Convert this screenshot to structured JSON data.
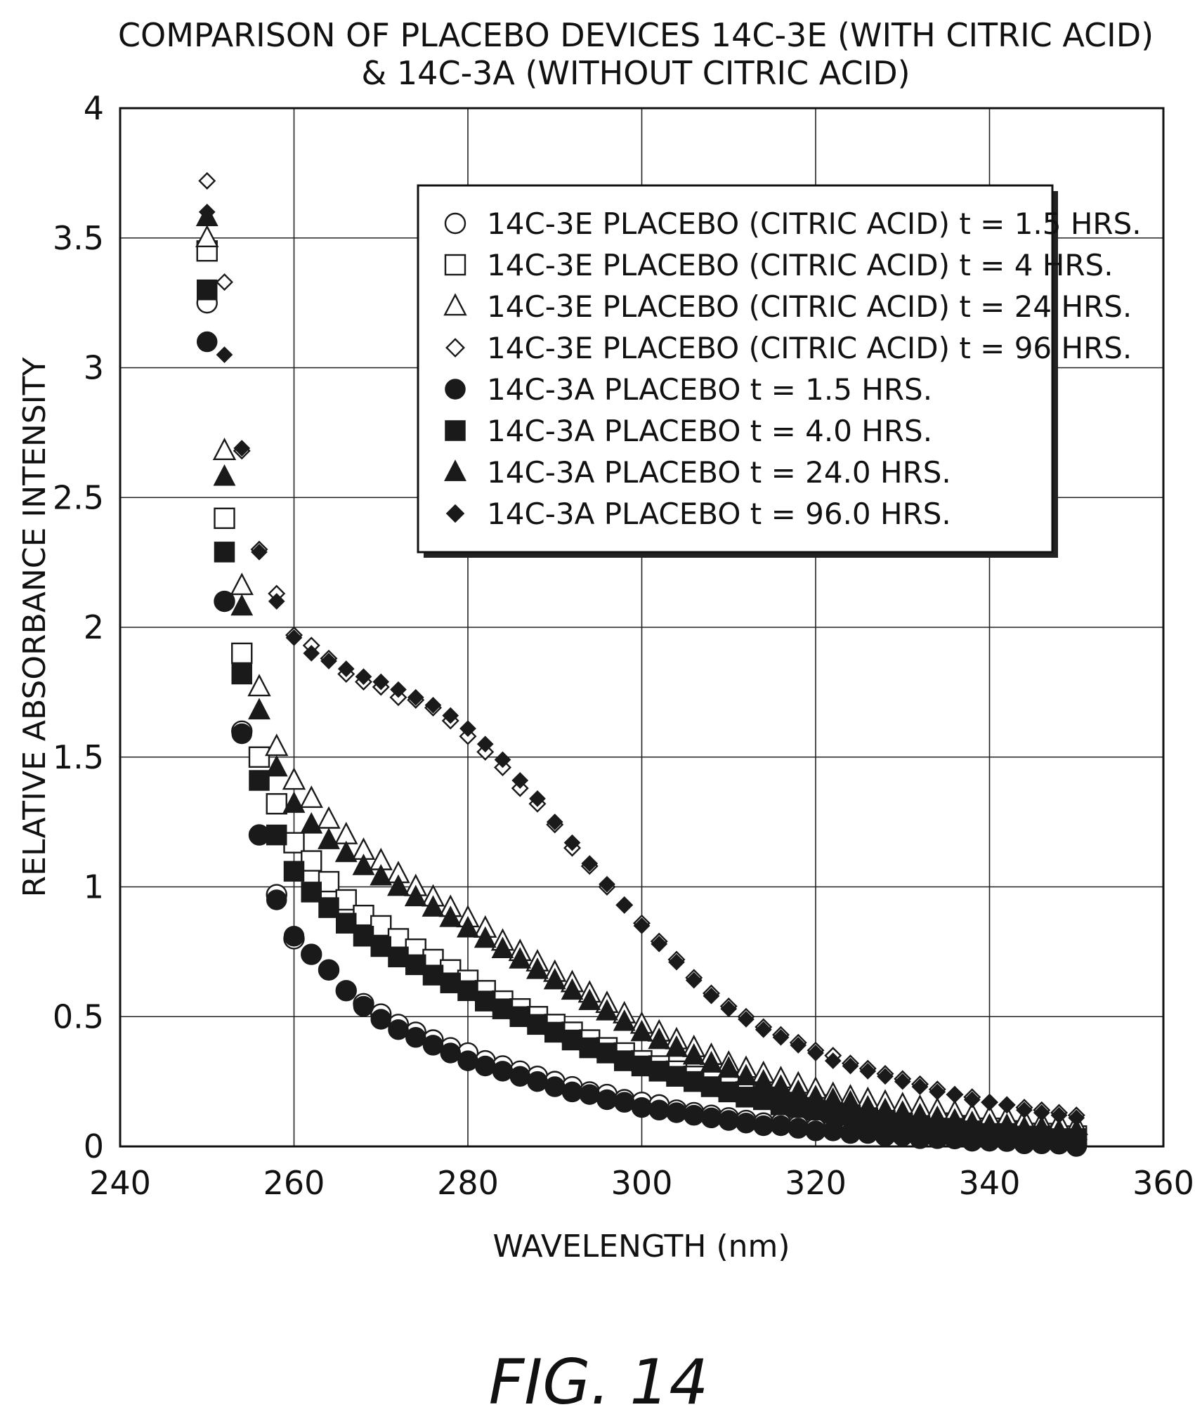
{
  "chart_data": {
    "type": "scatter",
    "title_lines": [
      "COMPARISON OF PLACEBO DEVICES 14C-3E (WITH CITRIC ACID)",
      "& 14C-3A (WITHOUT CITRIC ACID)"
    ],
    "xlabel": "WAVELENGTH (nm)",
    "ylabel": "RELATIVE ABSORBANCE INTENSITY",
    "xlim": [
      240,
      360
    ],
    "ylim": [
      0,
      4
    ],
    "x_ticks": [
      "240",
      "260",
      "280",
      "300",
      "320",
      "340",
      "360"
    ],
    "y_ticks": [
      "0",
      "0.5",
      "1",
      "1.5",
      "2",
      "2.5",
      "3",
      "3.5",
      "4"
    ],
    "grid": true,
    "legend_position": "top-right",
    "x": [
      250,
      252,
      254,
      256,
      258,
      260,
      262,
      264,
      266,
      268,
      270,
      272,
      274,
      276,
      278,
      280,
      282,
      284,
      286,
      288,
      290,
      292,
      294,
      296,
      298,
      300,
      302,
      304,
      306,
      308,
      310,
      312,
      314,
      316,
      318,
      320,
      322,
      324,
      326,
      328,
      330,
      332,
      334,
      336,
      338,
      340,
      342,
      344,
      346,
      348,
      350
    ],
    "series": [
      {
        "name": "14C-3E PLACEBO (CITRIC ACID) t = 1.5 HRS.",
        "marker": "circle-open",
        "values": [
          3.25,
          2.1,
          1.6,
          1.2,
          0.97,
          0.8,
          0.74,
          0.68,
          0.6,
          0.55,
          0.51,
          0.47,
          0.44,
          0.41,
          0.38,
          0.36,
          0.33,
          0.31,
          0.29,
          0.27,
          0.25,
          0.23,
          0.21,
          0.2,
          0.18,
          0.17,
          0.16,
          0.14,
          0.13,
          0.12,
          0.11,
          0.1,
          0.09,
          0.09,
          0.08,
          0.07,
          0.07,
          0.06,
          0.06,
          0.05,
          0.05,
          0.04,
          0.04,
          0.03,
          0.03,
          0.03,
          0.02,
          0.02,
          0.02,
          0.01,
          0.01
        ]
      },
      {
        "name": "14C-3E PLACEBO (CITRIC ACID) t = 4 HRS.",
        "marker": "square-open",
        "values": [
          3.45,
          2.42,
          1.9,
          1.5,
          1.32,
          1.17,
          1.1,
          1.02,
          0.95,
          0.89,
          0.85,
          0.8,
          0.76,
          0.72,
          0.68,
          0.64,
          0.6,
          0.56,
          0.53,
          0.5,
          0.47,
          0.44,
          0.41,
          0.38,
          0.36,
          0.33,
          0.31,
          0.29,
          0.27,
          0.25,
          0.23,
          0.21,
          0.2,
          0.18,
          0.17,
          0.16,
          0.14,
          0.13,
          0.12,
          0.11,
          0.1,
          0.09,
          0.09,
          0.08,
          0.07,
          0.07,
          0.06,
          0.05,
          0.05,
          0.04,
          0.04
        ]
      },
      {
        "name": "14C-3E PLACEBO (CITRIC ACID) t = 24 HRS.",
        "marker": "triangle-open",
        "values": [
          3.5,
          2.68,
          2.16,
          1.77,
          1.54,
          1.41,
          1.34,
          1.26,
          1.2,
          1.14,
          1.1,
          1.05,
          1.0,
          0.96,
          0.92,
          0.88,
          0.84,
          0.79,
          0.75,
          0.71,
          0.67,
          0.63,
          0.59,
          0.55,
          0.51,
          0.47,
          0.44,
          0.41,
          0.38,
          0.35,
          0.32,
          0.3,
          0.28,
          0.26,
          0.24,
          0.22,
          0.2,
          0.19,
          0.18,
          0.17,
          0.16,
          0.15,
          0.14,
          0.13,
          0.12,
          0.11,
          0.11,
          0.1,
          0.09,
          0.09,
          0.08
        ]
      },
      {
        "name": "14C-3E PLACEBO (CITRIC ACID) t = 96 HRS.",
        "marker": "diamond-open",
        "values": [
          3.72,
          3.33,
          2.68,
          2.3,
          2.13,
          1.97,
          1.93,
          1.88,
          1.82,
          1.79,
          1.77,
          1.73,
          1.72,
          1.69,
          1.64,
          1.58,
          1.52,
          1.46,
          1.38,
          1.32,
          1.24,
          1.15,
          1.08,
          1.0,
          0.93,
          0.86,
          0.79,
          0.72,
          0.65,
          0.59,
          0.54,
          0.5,
          0.46,
          0.43,
          0.4,
          0.37,
          0.35,
          0.32,
          0.3,
          0.28,
          0.26,
          0.24,
          0.22,
          0.2,
          0.19,
          0.17,
          0.16,
          0.15,
          0.14,
          0.13,
          0.12
        ]
      },
      {
        "name": "14C-3A PLACEBO t = 1.5 HRS.",
        "marker": "circle-filled",
        "values": [
          3.1,
          2.1,
          1.59,
          1.2,
          0.95,
          0.81,
          0.74,
          0.68,
          0.6,
          0.54,
          0.49,
          0.45,
          0.42,
          0.39,
          0.36,
          0.33,
          0.31,
          0.29,
          0.27,
          0.25,
          0.23,
          0.21,
          0.2,
          0.18,
          0.17,
          0.15,
          0.14,
          0.13,
          0.12,
          0.11,
          0.1,
          0.09,
          0.08,
          0.08,
          0.07,
          0.06,
          0.06,
          0.05,
          0.05,
          0.04,
          0.04,
          0.03,
          0.03,
          0.03,
          0.02,
          0.02,
          0.02,
          0.01,
          0.01,
          0.01,
          0.0
        ]
      },
      {
        "name": "14C-3A PLACEBO t = 4.0 HRS.",
        "marker": "square-filled",
        "values": [
          3.3,
          2.29,
          1.82,
          1.41,
          1.2,
          1.06,
          0.98,
          0.92,
          0.86,
          0.81,
          0.77,
          0.73,
          0.7,
          0.66,
          0.63,
          0.6,
          0.56,
          0.53,
          0.5,
          0.47,
          0.44,
          0.41,
          0.38,
          0.36,
          0.33,
          0.31,
          0.29,
          0.27,
          0.25,
          0.23,
          0.21,
          0.19,
          0.18,
          0.16,
          0.15,
          0.14,
          0.13,
          0.12,
          0.11,
          0.1,
          0.09,
          0.08,
          0.07,
          0.07,
          0.06,
          0.05,
          0.05,
          0.04,
          0.04,
          0.03,
          0.03
        ]
      },
      {
        "name": "14C-3A PLACEBO t = 24.0 HRS.",
        "marker": "triangle-filled",
        "values": [
          3.58,
          2.58,
          2.08,
          1.68,
          1.46,
          1.32,
          1.24,
          1.18,
          1.13,
          1.08,
          1.04,
          1.0,
          0.96,
          0.92,
          0.88,
          0.84,
          0.8,
          0.76,
          0.72,
          0.68,
          0.64,
          0.6,
          0.56,
          0.52,
          0.48,
          0.44,
          0.41,
          0.38,
          0.35,
          0.32,
          0.3,
          0.27,
          0.25,
          0.23,
          0.21,
          0.19,
          0.18,
          0.17,
          0.15,
          0.14,
          0.13,
          0.12,
          0.11,
          0.1,
          0.09,
          0.08,
          0.08,
          0.07,
          0.07,
          0.06,
          0.06
        ]
      },
      {
        "name": "14C-3A PLACEBO t = 96.0 HRS.",
        "marker": "diamond-filled",
        "values": [
          3.6,
          3.05,
          2.69,
          2.29,
          2.1,
          1.96,
          1.9,
          1.87,
          1.84,
          1.81,
          1.79,
          1.76,
          1.73,
          1.7,
          1.66,
          1.61,
          1.55,
          1.49,
          1.41,
          1.34,
          1.25,
          1.17,
          1.09,
          1.01,
          0.93,
          0.85,
          0.78,
          0.71,
          0.64,
          0.58,
          0.53,
          0.49,
          0.45,
          0.42,
          0.39,
          0.36,
          0.33,
          0.31,
          0.29,
          0.27,
          0.25,
          0.23,
          0.21,
          0.2,
          0.18,
          0.17,
          0.16,
          0.14,
          0.13,
          0.12,
          0.11
        ]
      }
    ]
  },
  "figure_label": "FIG. 14"
}
